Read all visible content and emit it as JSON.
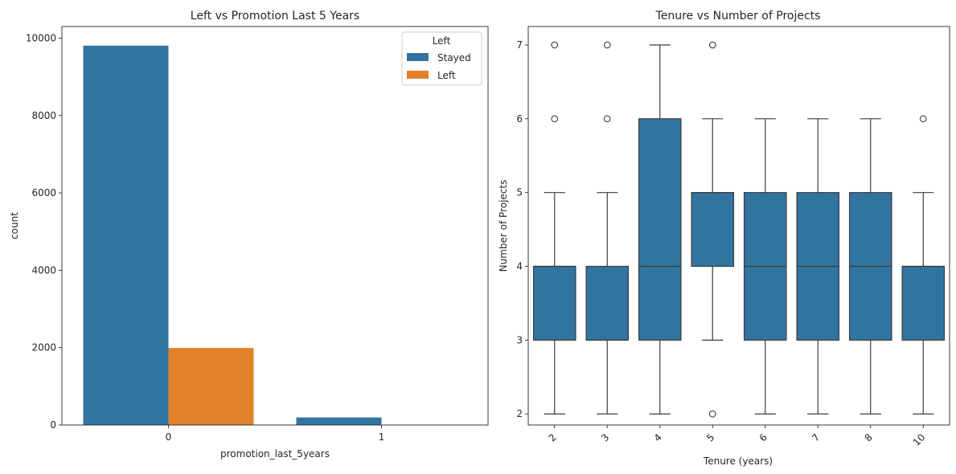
{
  "chart_data": [
    {
      "type": "bar",
      "title": "Left vs Promotion Last 5 Years",
      "xlabel": "promotion_last_5years",
      "ylabel": "count",
      "categories": [
        "0",
        "1"
      ],
      "ylim": [
        0,
        10300
      ],
      "yticks": [
        0,
        2000,
        4000,
        6000,
        8000,
        10000
      ],
      "legend": {
        "title": "Left",
        "placement": "top-right"
      },
      "grid": false,
      "series": [
        {
          "name": "Stayed",
          "color": "#3274a1",
          "values": [
            9805,
            195
          ]
        },
        {
          "name": "Left",
          "color": "#e1812c",
          "values": [
            1991,
            0
          ]
        }
      ]
    },
    {
      "type": "box",
      "title": "Tenure vs Number of Projects",
      "xlabel": "Tenure (years)",
      "ylabel": "Number of Projects",
      "categories": [
        "2",
        "3",
        "4",
        "5",
        "6",
        "7",
        "8",
        "10"
      ],
      "ylim": [
        1.85,
        7.25
      ],
      "yticks": [
        2,
        3,
        4,
        5,
        6,
        7
      ],
      "grid": false,
      "color": "#3274a1",
      "boxes": [
        {
          "category": "2",
          "whisker_low": 2,
          "q1": 3,
          "median": 4,
          "q3": 4,
          "whisker_high": 5,
          "outliers": [
            6,
            7
          ]
        },
        {
          "category": "3",
          "whisker_low": 2,
          "q1": 3,
          "median": 3,
          "q3": 4,
          "whisker_high": 5,
          "outliers": [
            6,
            7
          ]
        },
        {
          "category": "4",
          "whisker_low": 2,
          "q1": 3,
          "median": 4,
          "q3": 6,
          "whisker_high": 7,
          "outliers": []
        },
        {
          "category": "5",
          "whisker_low": 3,
          "q1": 4,
          "median": 5,
          "q3": 5,
          "whisker_high": 6,
          "outliers": [
            2,
            7
          ]
        },
        {
          "category": "6",
          "whisker_low": 2,
          "q1": 3,
          "median": 4,
          "q3": 5,
          "whisker_high": 6,
          "outliers": []
        },
        {
          "category": "7",
          "whisker_low": 2,
          "q1": 3,
          "median": 4,
          "q3": 5,
          "whisker_high": 6,
          "outliers": []
        },
        {
          "category": "8",
          "whisker_low": 2,
          "q1": 3,
          "median": 4,
          "q3": 5,
          "whisker_high": 6,
          "outliers": []
        },
        {
          "category": "10",
          "whisker_low": 2,
          "q1": 3,
          "median": 4,
          "q3": 4,
          "whisker_high": 5,
          "outliers": [
            6
          ]
        }
      ]
    }
  ]
}
